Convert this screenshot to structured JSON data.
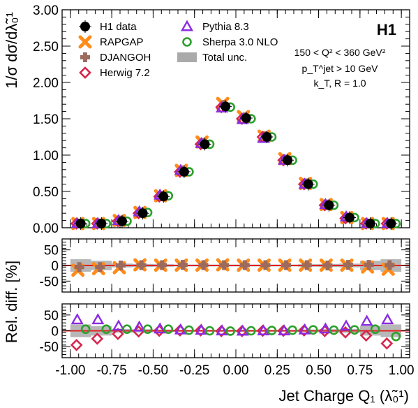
{
  "chart_data": {
    "type": "scatter",
    "experiment_label": "H1",
    "annotations": [
      "150 < Q² < 360 GeV²",
      "p_T^jet > 10 GeV",
      "k_T, R = 1.0"
    ],
    "xlabel": "Jet Charge Q₁ (λ̃₀¹)",
    "xlim": [
      -1.05,
      1.05
    ],
    "xticks": [
      -1.0,
      -0.75,
      -0.5,
      -0.25,
      0.0,
      0.25,
      0.5,
      0.75,
      1.0
    ],
    "xtick_labels": [
      "-1.00",
      "-0.75",
      "-0.50",
      "-0.25",
      "0.00",
      "0.25",
      "0.50",
      "0.75",
      "1.00"
    ],
    "bin_centers": [
      -0.9375,
      -0.8125,
      -0.6875,
      -0.5625,
      -0.4375,
      -0.3125,
      -0.1875,
      -0.0625,
      0.0625,
      0.1875,
      0.3125,
      0.4375,
      0.5625,
      0.6875,
      0.8125,
      0.9375
    ],
    "legend": [
      {
        "key": "h1",
        "label": "H1 data"
      },
      {
        "key": "pythia",
        "label": "Pythia 8.3"
      },
      {
        "key": "rapgap",
        "label": "RAPGAP"
      },
      {
        "key": "sherpa",
        "label": "Sherpa 3.0 NLO"
      },
      {
        "key": "djangoh",
        "label": "DJANGOH"
      },
      {
        "key": "unc",
        "label": "Total unc."
      },
      {
        "key": "herwig",
        "label": "Herwig 7.2"
      }
    ],
    "main": {
      "ylabel": "1/σ dσ/dλ̃₀¹",
      "ylim": [
        0,
        3.0
      ],
      "yticks": [
        0,
        0.5,
        1.0,
        1.5,
        2.0,
        2.5,
        3.0
      ],
      "ytick_labels": [
        "0.00",
        "0.50",
        "1.00",
        "1.50",
        "2.00",
        "2.50",
        "3.00"
      ],
      "series": [
        {
          "name": "H1 data",
          "key": "h1",
          "values": [
            0.01,
            0.04,
            0.09,
            0.2,
            0.43,
            0.77,
            1.15,
            1.67,
            1.51,
            1.25,
            0.93,
            0.6,
            0.31,
            0.14,
            0.04,
            0.01
          ]
        },
        {
          "name": "RAPGAP",
          "key": "rapgap",
          "values": [
            0.01,
            0.04,
            0.1,
            0.21,
            0.44,
            0.79,
            1.18,
            1.71,
            1.53,
            1.26,
            0.95,
            0.61,
            0.32,
            0.14,
            0.04,
            0.01
          ]
        },
        {
          "name": "DJANGOH",
          "key": "djangoh",
          "values": [
            0.01,
            0.04,
            0.1,
            0.21,
            0.44,
            0.79,
            1.17,
            1.69,
            1.52,
            1.26,
            0.94,
            0.61,
            0.32,
            0.14,
            0.04,
            0.01
          ]
        },
        {
          "name": "Herwig 7.2",
          "key": "herwig",
          "values": [
            0.01,
            0.03,
            0.09,
            0.2,
            0.43,
            0.77,
            1.15,
            1.66,
            1.5,
            1.25,
            0.93,
            0.6,
            0.31,
            0.13,
            0.03,
            0.01
          ]
        },
        {
          "name": "Pythia 8.3",
          "key": "pythia",
          "values": [
            0.01,
            0.05,
            0.1,
            0.22,
            0.45,
            0.79,
            1.16,
            1.65,
            1.49,
            1.23,
            0.93,
            0.6,
            0.32,
            0.15,
            0.05,
            0.01
          ]
        },
        {
          "name": "Sherpa 3.0 NLO",
          "key": "sherpa",
          "values": [
            0.01,
            0.04,
            0.09,
            0.21,
            0.44,
            0.77,
            1.15,
            1.66,
            1.5,
            1.25,
            0.93,
            0.6,
            0.31,
            0.14,
            0.04,
            0.01
          ]
        }
      ]
    },
    "ratio1": {
      "ylabel": "Rel. diff. [%]",
      "ylim": [
        -85,
        85
      ],
      "yticks": [
        -50,
        0,
        50
      ],
      "ytick_labels": [
        "-50",
        "0",
        "50"
      ],
      "unc_band": [
        20,
        15,
        6,
        5,
        4,
        3,
        3,
        3,
        3,
        3,
        3,
        4,
        5,
        6,
        15,
        20
      ],
      "series": [
        {
          "name": "RAPGAP",
          "key": "rapgap",
          "values": [
            -15,
            -10,
            -7,
            2,
            1,
            1,
            1,
            2,
            1,
            1,
            1,
            1,
            1,
            1,
            -5,
            -12
          ]
        },
        {
          "name": "DJANGOH",
          "key": "djangoh",
          "values": [
            -5,
            -5,
            0,
            1,
            1,
            2,
            1,
            1,
            1,
            1,
            1,
            1,
            0,
            2,
            2,
            1
          ]
        }
      ]
    },
    "ratio2": {
      "ylabel": "",
      "ylim": [
        -85,
        85
      ],
      "yticks": [
        -50,
        0,
        50
      ],
      "ytick_labels": [
        "-50",
        "0",
        "50"
      ],
      "unc_band": [
        20,
        15,
        6,
        5,
        4,
        3,
        3,
        3,
        3,
        3,
        3,
        4,
        5,
        6,
        15,
        20
      ],
      "series": [
        {
          "name": "Herwig 7.2",
          "key": "herwig",
          "values": [
            -45,
            -25,
            -10,
            -2,
            0,
            1,
            1,
            -1,
            -1,
            0,
            0,
            1,
            -1,
            -5,
            -15,
            -40
          ]
        },
        {
          "name": "Pythia 8.3",
          "key": "pythia",
          "values": [
            35,
            35,
            15,
            12,
            6,
            3,
            2,
            0,
            -1,
            0,
            0,
            3,
            6,
            15,
            30,
            35
          ]
        },
        {
          "name": "Sherpa 3.0 NLO",
          "key": "sherpa",
          "values": [
            5,
            5,
            5,
            5,
            5,
            2,
            0,
            -1,
            0,
            1,
            2,
            3,
            2,
            3,
            5,
            -18
          ]
        }
      ]
    },
    "colors": {
      "h1": "#000000",
      "rapgap": "#ff8c1a",
      "djangoh": "#9c6b5e",
      "herwig": "#d6264d",
      "pythia": "#8a2be2",
      "sherpa": "#2ca02c",
      "unc": "#aaaaaa",
      "refline": "#e02020"
    }
  }
}
